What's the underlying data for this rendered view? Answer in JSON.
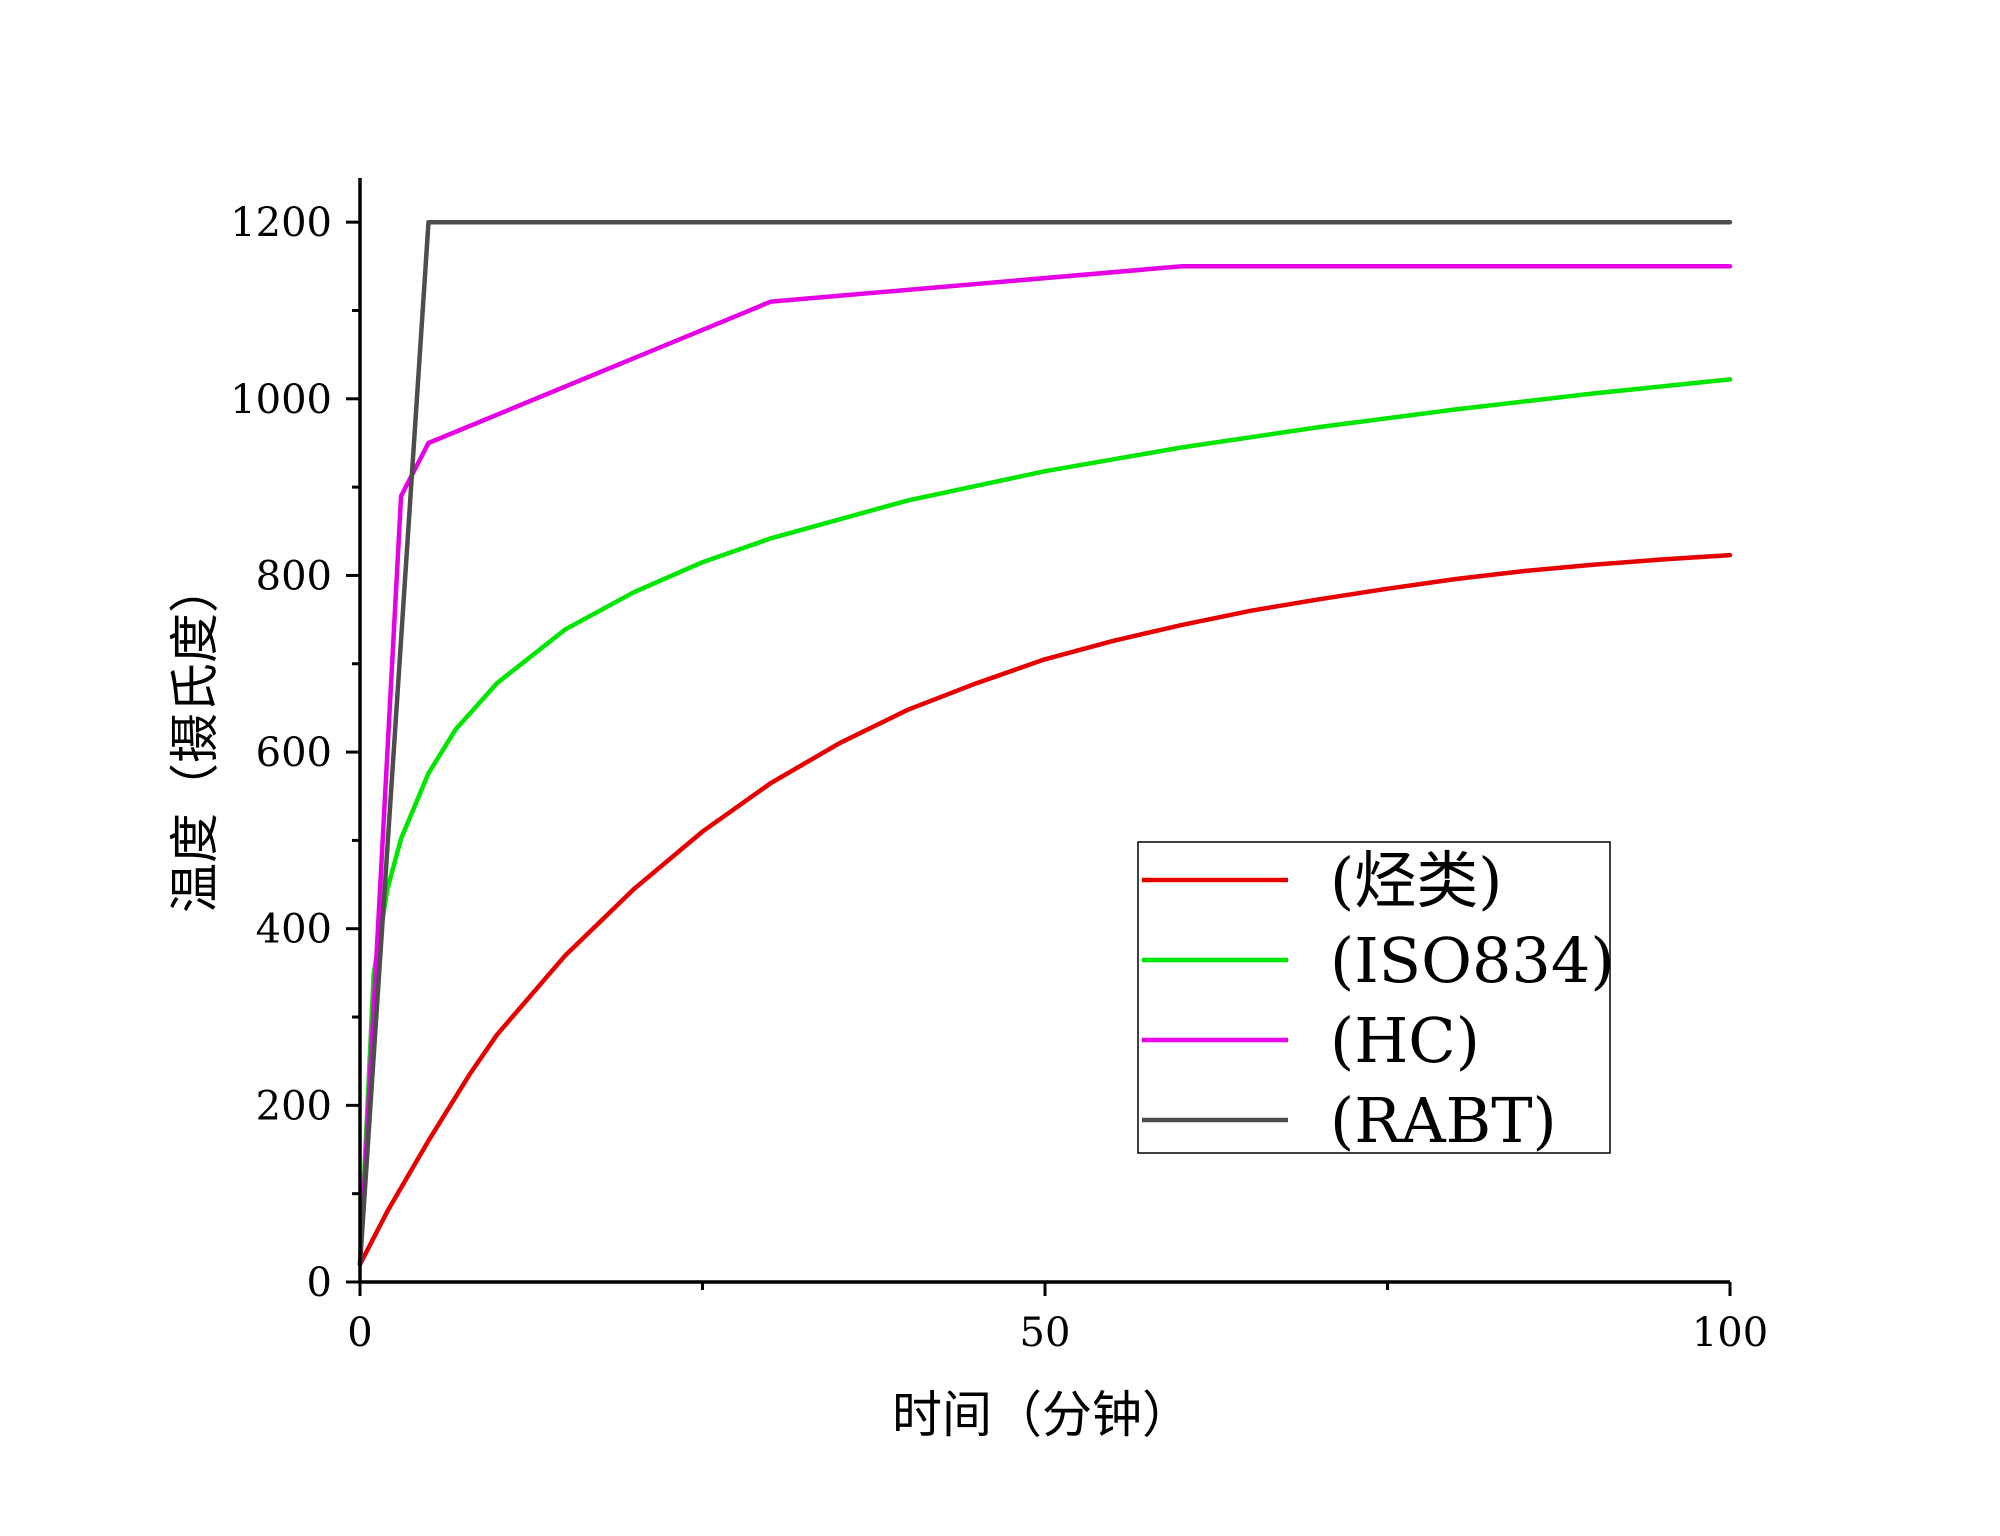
{
  "chart_data": {
    "type": "line",
    "title": "",
    "xlabel": "时间（分钟）",
    "ylabel": "温度（摄氏度）",
    "xlim": [
      0,
      100
    ],
    "ylim": [
      0,
      1250
    ],
    "x_ticks": [
      "0",
      "50",
      "100"
    ],
    "y_ticks": [
      "0",
      "200",
      "400",
      "600",
      "800",
      "1000",
      "1200"
    ],
    "grid": false,
    "legend_position": "bottom-right",
    "series": [
      {
        "name": "(烃类)",
        "color": "#e60000",
        "x": [
          0,
          2,
          5,
          8,
          10,
          15,
          20,
          25,
          30,
          35,
          40,
          45,
          50,
          55,
          60,
          65,
          70,
          75,
          80,
          85,
          90,
          95,
          100
        ],
        "y": [
          20,
          80,
          160,
          235,
          280,
          370,
          445,
          510,
          565,
          610,
          648,
          678,
          705,
          726,
          744,
          760,
          773,
          785,
          796,
          805,
          812,
          818,
          823
        ]
      },
      {
        "name": "(ISO834)",
        "color": "#00e600",
        "x": [
          0,
          1,
          2,
          3,
          5,
          7,
          10,
          15,
          20,
          25,
          30,
          40,
          50,
          60,
          70,
          80,
          90,
          100
        ],
        "y": [
          20,
          349,
          445,
          502,
          576,
          626,
          678,
          739,
          781,
          815,
          842,
          885,
          918,
          945,
          968,
          988,
          1006,
          1022
        ]
      },
      {
        "name": "(HC)",
        "color": "#e600e6",
        "x": [
          0,
          3,
          5,
          30,
          60,
          100
        ],
        "y": [
          20,
          890,
          950,
          1110,
          1150,
          1150
        ]
      },
      {
        "name": "(RABT)",
        "color": "#4d4d4d",
        "x": [
          0,
          5,
          100
        ],
        "y": [
          20,
          1200,
          1200
        ]
      }
    ]
  }
}
